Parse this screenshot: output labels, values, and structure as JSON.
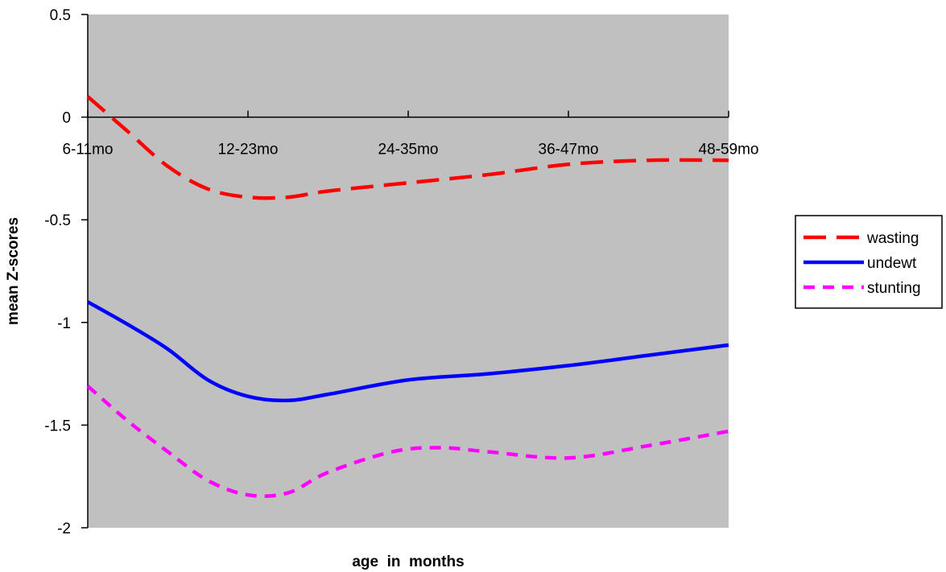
{
  "chart_data": {
    "type": "line",
    "title": "",
    "xlabel": "age  in  months",
    "ylabel": "mean Z-scores",
    "categories": [
      "6-11mo",
      "12-23mo",
      "24-35mo",
      "36-47mo",
      "48-59mo"
    ],
    "x": [
      0,
      1,
      2,
      3,
      4
    ],
    "ylim": [
      -2,
      0.5
    ],
    "yticks": [
      "0.5",
      "0",
      "-0.5",
      "-1",
      "-1.5",
      "-2"
    ],
    "ytick_values": [
      0.5,
      0,
      -0.5,
      -1,
      -1.5,
      -2
    ],
    "grid": false,
    "legend": "right",
    "plot_background": "#c0c0c0",
    "series": [
      {
        "name": "wasting",
        "color": "#ff0000",
        "dash": "long-dash",
        "points": [
          [
            0,
            0.1
          ],
          [
            0.25,
            -0.07
          ],
          [
            0.5,
            -0.24
          ],
          [
            0.75,
            -0.35
          ],
          [
            1.0,
            -0.39
          ],
          [
            1.25,
            -0.39
          ],
          [
            1.5,
            -0.36
          ],
          [
            2.0,
            -0.32
          ],
          [
            2.5,
            -0.28
          ],
          [
            3.0,
            -0.23
          ],
          [
            3.5,
            -0.21
          ],
          [
            4.0,
            -0.21
          ]
        ]
      },
      {
        "name": "undewt",
        "color": "#0000ff",
        "dash": "solid",
        "points": [
          [
            0,
            -0.9
          ],
          [
            0.25,
            -1.01
          ],
          [
            0.5,
            -1.13
          ],
          [
            0.75,
            -1.28
          ],
          [
            1.0,
            -1.36
          ],
          [
            1.25,
            -1.38
          ],
          [
            1.5,
            -1.35
          ],
          [
            2.0,
            -1.28
          ],
          [
            2.5,
            -1.25
          ],
          [
            3.0,
            -1.21
          ],
          [
            3.5,
            -1.16
          ],
          [
            4.0,
            -1.11
          ]
        ]
      },
      {
        "name": "stunting",
        "color": "#ff00ff",
        "dash": "short-dash",
        "points": [
          [
            0,
            -1.31
          ],
          [
            0.25,
            -1.48
          ],
          [
            0.5,
            -1.63
          ],
          [
            0.75,
            -1.77
          ],
          [
            1.0,
            -1.84
          ],
          [
            1.25,
            -1.83
          ],
          [
            1.5,
            -1.73
          ],
          [
            1.9,
            -1.63
          ],
          [
            2.2,
            -1.61
          ],
          [
            2.5,
            -1.63
          ],
          [
            3.0,
            -1.66
          ],
          [
            3.5,
            -1.6
          ],
          [
            4.0,
            -1.53
          ]
        ]
      }
    ]
  }
}
